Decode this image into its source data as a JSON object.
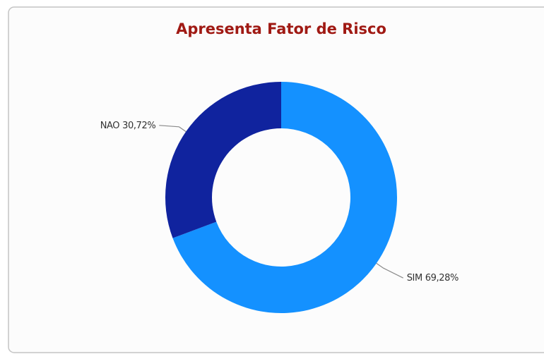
{
  "chart_data": {
    "type": "pie",
    "title": "Apresenta Fator de Risco",
    "categories": [
      "SIM",
      "NAO"
    ],
    "values": [
      69.28,
      30.72
    ],
    "value_labels": [
      "69,28%",
      "30,72%"
    ],
    "colors": [
      "#1491ff",
      "#10239e"
    ],
    "donut": true
  }
}
